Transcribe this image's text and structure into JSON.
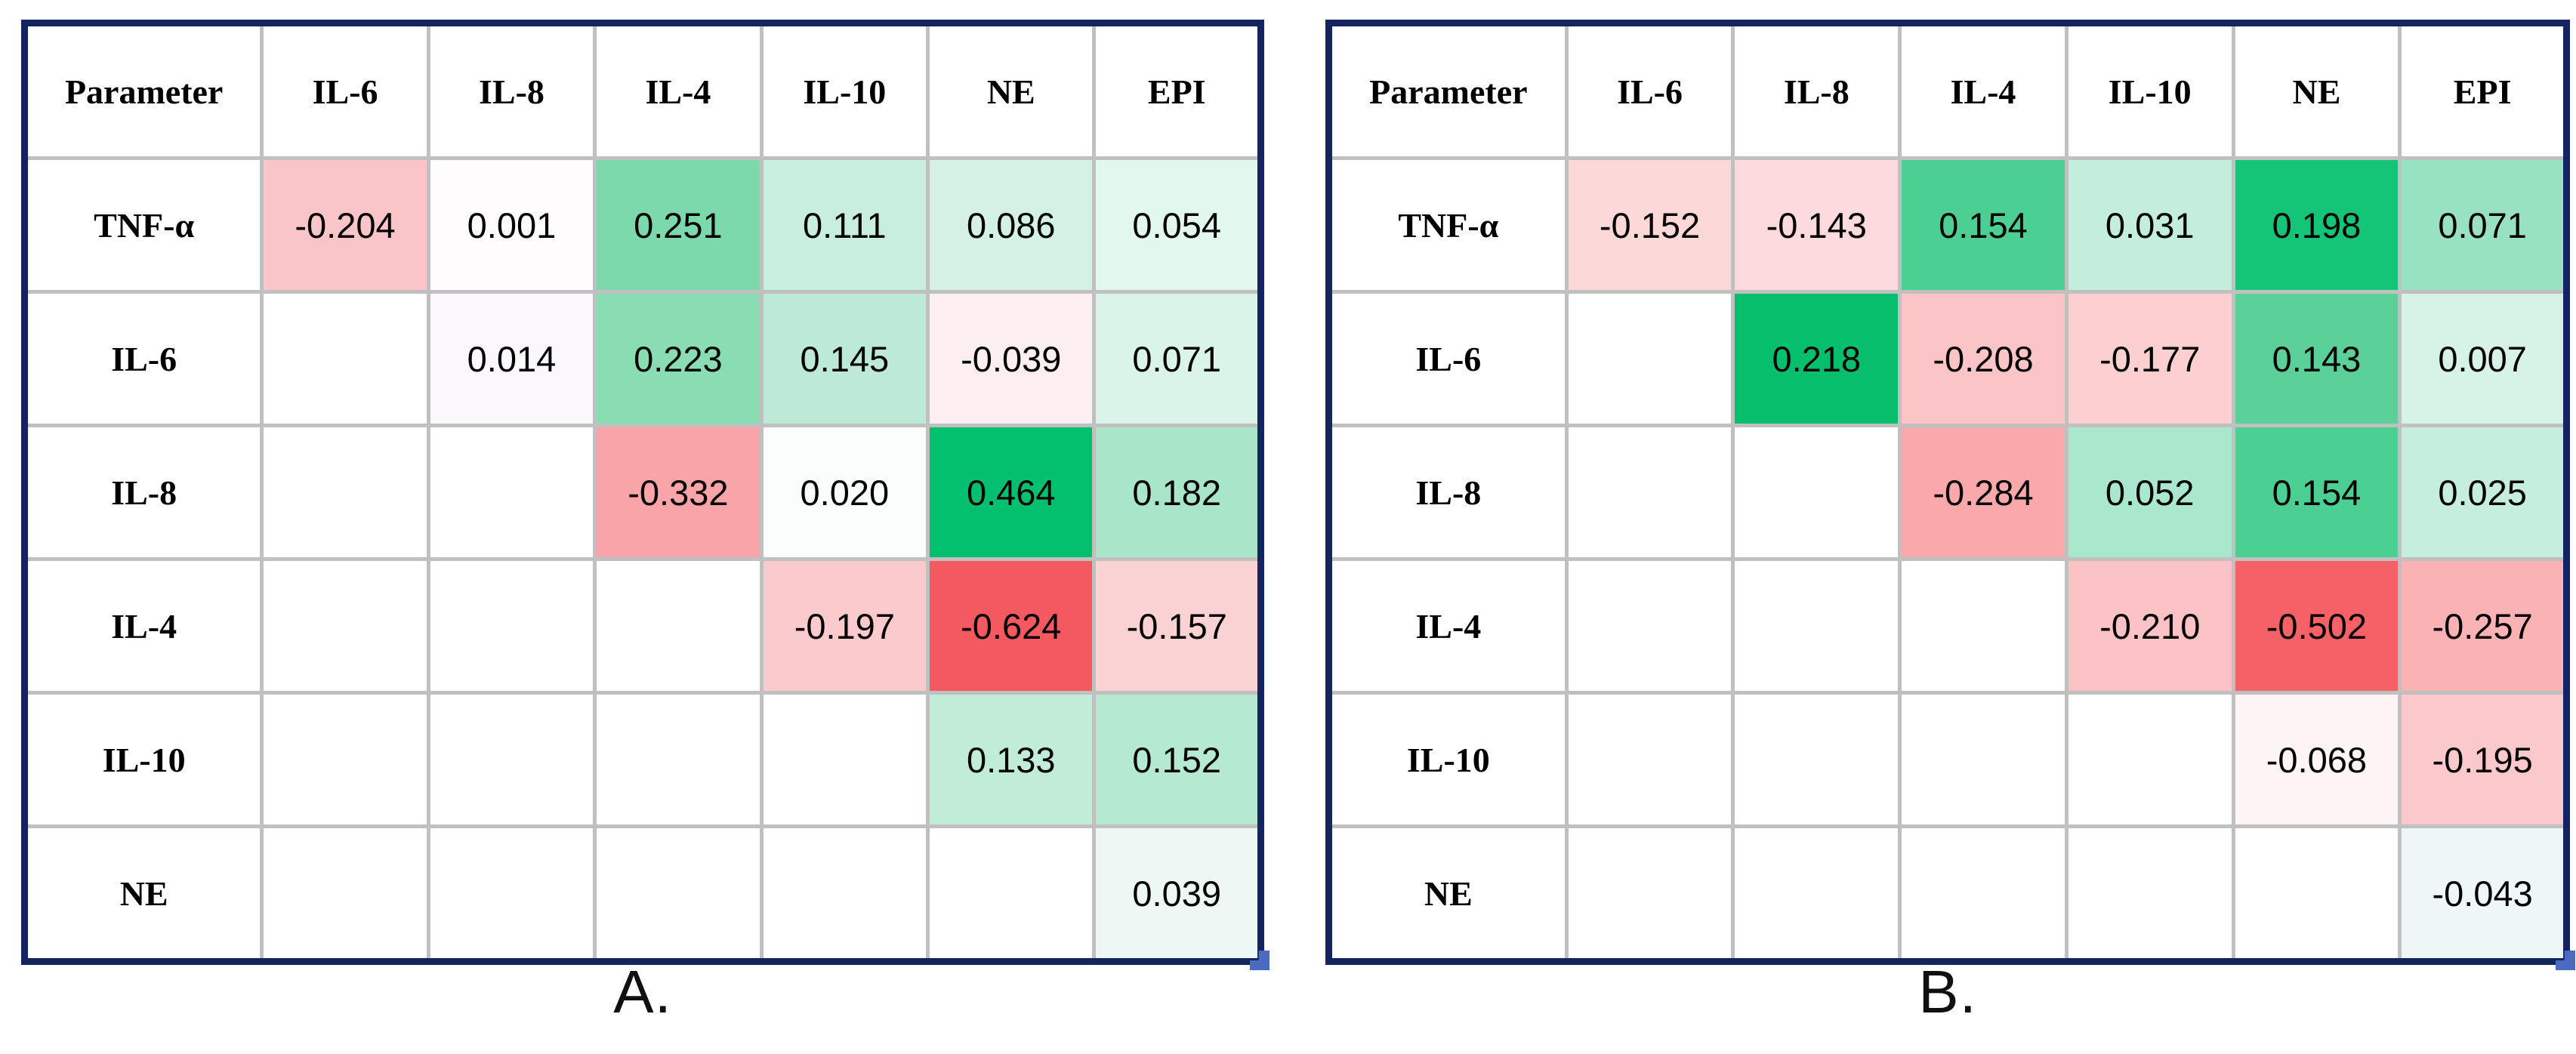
{
  "page": {
    "background": "#ffffff"
  },
  "colors": {
    "outer_border_navy": "#14245e",
    "gridline_gray": "#c0c0c0",
    "positive_max_green": "#02c06e",
    "negative_min_red": "#f4595f",
    "scale_midpoint_white": "#ffffff",
    "fill_handle_blue": "#4a6bbf",
    "text_black": "#000000"
  },
  "chart_data": [
    {
      "type": "heatmap",
      "panel_label": "A.",
      "columns": [
        "Parameter",
        "IL-6",
        "IL-8",
        "IL-4",
        "IL-10",
        "NE",
        "EPI"
      ],
      "row_labels": [
        "TNF-α",
        "IL-6",
        "IL-8",
        "IL-4",
        "IL-10",
        "NE"
      ],
      "value_range": {
        "min": -0.624,
        "max": 0.464
      },
      "cells": [
        [
          {
            "v": "-0.204",
            "bg": "#fac5c8"
          },
          {
            "v": "0.001",
            "bg": "#fefcfd"
          },
          {
            "v": "0.251",
            "bg": "#7cd9ab"
          },
          {
            "v": "0.111",
            "bg": "#c8eedd"
          },
          {
            "v": "0.086",
            "bg": "#d3f2e5"
          },
          {
            "v": "0.054",
            "bg": "#e2f7ed"
          }
        ],
        [
          {
            "v": "",
            "bg": "#ffffff"
          },
          {
            "v": "0.014",
            "bg": "#faf8fa"
          },
          {
            "v": "0.223",
            "bg": "#8adcb3"
          },
          {
            "v": "0.145",
            "bg": "#bdead6"
          },
          {
            "v": "-0.039",
            "bg": "#fdeff1"
          },
          {
            "v": "0.071",
            "bg": "#daf4e9"
          }
        ],
        [
          {
            "v": "",
            "bg": "#ffffff"
          },
          {
            "v": "",
            "bg": "#ffffff"
          },
          {
            "v": "-0.332",
            "bg": "#f9a4a8"
          },
          {
            "v": "0.020",
            "bg": "#f9fdfc"
          },
          {
            "v": "0.464",
            "bg": "#02c06e"
          },
          {
            "v": "0.182",
            "bg": "#a8e5c9"
          }
        ],
        [
          {
            "v": "",
            "bg": "#ffffff"
          },
          {
            "v": "",
            "bg": "#ffffff"
          },
          {
            "v": "",
            "bg": "#ffffff"
          },
          {
            "v": "-0.197",
            "bg": "#fbcacd"
          },
          {
            "v": "-0.624",
            "bg": "#f4595f"
          },
          {
            "v": "-0.157",
            "bg": "#fbd2d4"
          }
        ],
        [
          {
            "v": "",
            "bg": "#ffffff"
          },
          {
            "v": "",
            "bg": "#ffffff"
          },
          {
            "v": "",
            "bg": "#ffffff"
          },
          {
            "v": "",
            "bg": "#ffffff"
          },
          {
            "v": "0.133",
            "bg": "#c0ecd8"
          },
          {
            "v": "0.152",
            "bg": "#b5e9d1"
          }
        ],
        [
          {
            "v": "",
            "bg": "#ffffff"
          },
          {
            "v": "",
            "bg": "#ffffff"
          },
          {
            "v": "",
            "bg": "#ffffff"
          },
          {
            "v": "",
            "bg": "#ffffff"
          },
          {
            "v": "",
            "bg": "#ffffff"
          },
          {
            "v": "0.039",
            "bg": "#edf7f3"
          }
        ]
      ]
    },
    {
      "type": "heatmap",
      "panel_label": "B.",
      "columns": [
        "Parameter",
        "IL-6",
        "IL-8",
        "IL-4",
        "IL-10",
        "NE",
        "EPI"
      ],
      "row_labels": [
        "TNF-α",
        "IL-6",
        "IL-8",
        "IL-4",
        "IL-10",
        "NE"
      ],
      "value_range": {
        "min": -0.502,
        "max": 0.218
      },
      "cells": [
        [
          {
            "v": "-0.152",
            "bg": "#fcd8d9"
          },
          {
            "v": "-0.143",
            "bg": "#fddbdc"
          },
          {
            "v": "0.154",
            "bg": "#4ccf93"
          },
          {
            "v": "0.031",
            "bg": "#c3eedb"
          },
          {
            "v": "0.198",
            "bg": "#14c477"
          },
          {
            "v": "0.071",
            "bg": "#98e2c2"
          }
        ],
        [
          {
            "v": "",
            "bg": "#ffffff"
          },
          {
            "v": "0.218",
            "bg": "#06bf6d"
          },
          {
            "v": "-0.208",
            "bg": "#fbc4c7"
          },
          {
            "v": "-0.177",
            "bg": "#fccfd1"
          },
          {
            "v": "0.143",
            "bg": "#5bd199"
          },
          {
            "v": "0.007",
            "bg": "#d6f3e6"
          }
        ],
        [
          {
            "v": "",
            "bg": "#ffffff"
          },
          {
            "v": "",
            "bg": "#ffffff"
          },
          {
            "v": "-0.284",
            "bg": "#f9a8ab"
          },
          {
            "v": "0.052",
            "bg": "#a9e8cc"
          },
          {
            "v": "0.154",
            "bg": "#4ccf93"
          },
          {
            "v": "0.025",
            "bg": "#c5efdc"
          }
        ],
        [
          {
            "v": "",
            "bg": "#ffffff"
          },
          {
            "v": "",
            "bg": "#ffffff"
          },
          {
            "v": "",
            "bg": "#ffffff"
          },
          {
            "v": "-0.210",
            "bg": "#fbc3c6"
          },
          {
            "v": "-0.502",
            "bg": "#f56166"
          },
          {
            "v": "-0.257",
            "bg": "#fab2b5"
          }
        ],
        [
          {
            "v": "",
            "bg": "#ffffff"
          },
          {
            "v": "",
            "bg": "#ffffff"
          },
          {
            "v": "",
            "bg": "#ffffff"
          },
          {
            "v": "",
            "bg": "#ffffff"
          },
          {
            "v": "-0.068",
            "bg": "#fdf4f5"
          },
          {
            "v": "-0.195",
            "bg": "#fbc9cb"
          }
        ],
        [
          {
            "v": "",
            "bg": "#ffffff"
          },
          {
            "v": "",
            "bg": "#ffffff"
          },
          {
            "v": "",
            "bg": "#ffffff"
          },
          {
            "v": "",
            "bg": "#ffffff"
          },
          {
            "v": "",
            "bg": "#ffffff"
          },
          {
            "v": "-0.043",
            "bg": "#eff7f6"
          }
        ]
      ]
    }
  ]
}
